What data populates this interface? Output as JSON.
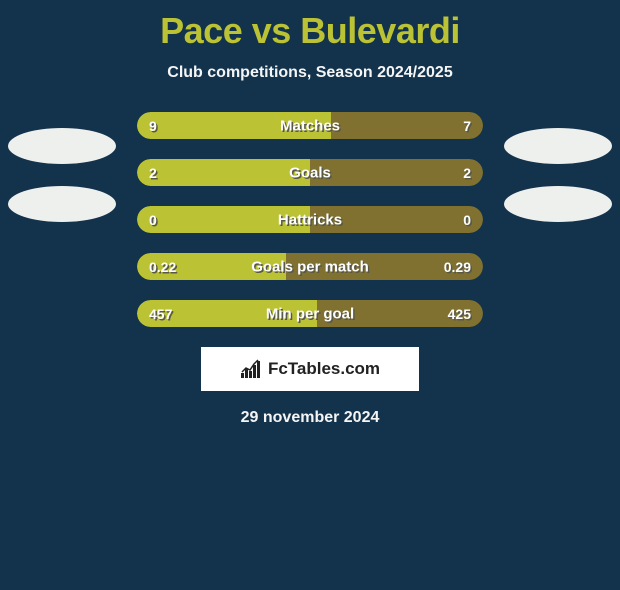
{
  "title": {
    "team_a": "Pace",
    "vs": "vs",
    "team_b": "Bulevardi",
    "color": "#bbc233"
  },
  "subtitle": "Club competitions, Season 2024/2025",
  "colors": {
    "bar_left": "#bbc233",
    "bar_right": "#807131",
    "background": "#13334c",
    "logo": "#eef0ee",
    "brand_box": "#ffffff"
  },
  "stats": [
    {
      "label": "Matches",
      "left_val": "9",
      "right_val": "7",
      "left_pct": 56
    },
    {
      "label": "Goals",
      "left_val": "2",
      "right_val": "2",
      "left_pct": 50
    },
    {
      "label": "Hattricks",
      "left_val": "0",
      "right_val": "0",
      "left_pct": 50
    },
    {
      "label": "Goals per match",
      "left_val": "0.22",
      "right_val": "0.29",
      "left_pct": 43
    },
    {
      "label": "Min per goal",
      "left_val": "457",
      "right_val": "425",
      "left_pct": 52
    }
  ],
  "brand": "FcTables.com",
  "date": "29 november 2024",
  "logos": {
    "left_count": 2,
    "right_count": 2
  }
}
